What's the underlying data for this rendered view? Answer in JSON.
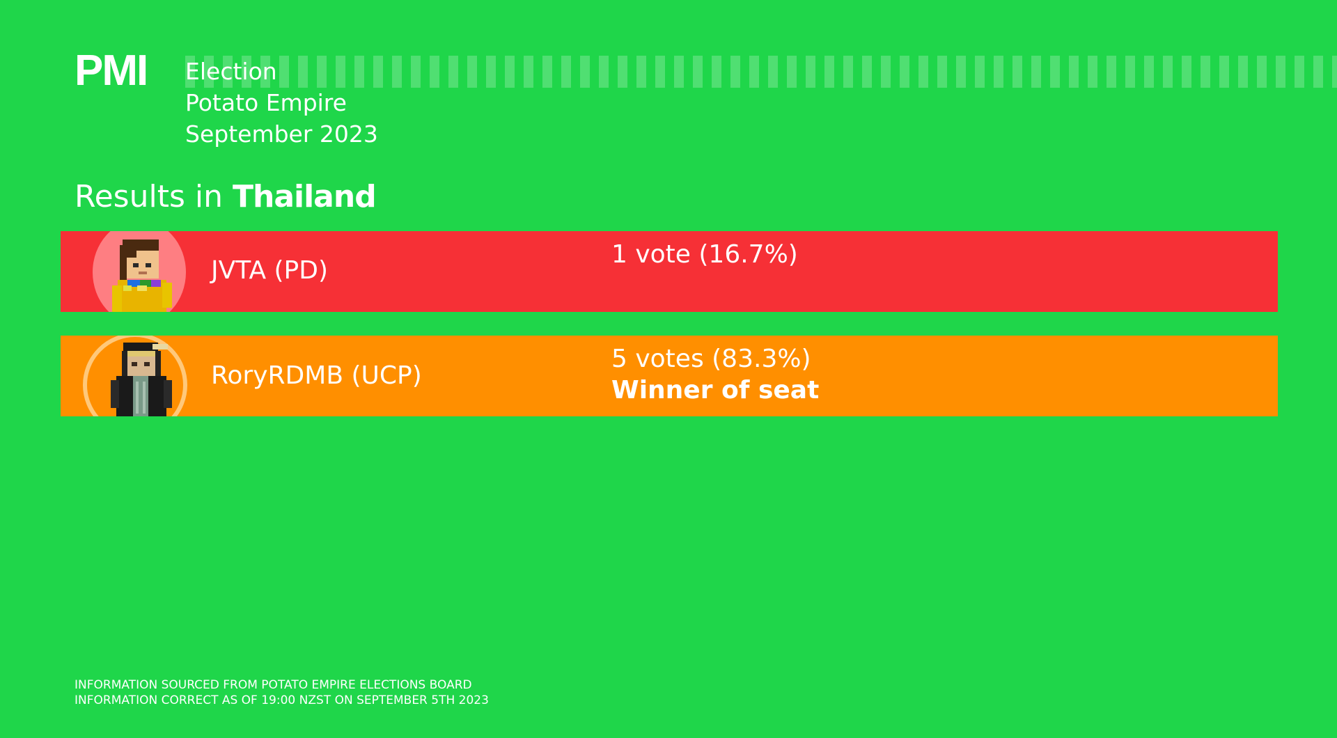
{
  "header": {
    "logo": "PMI",
    "line1": "Election",
    "line2": "Potato Empire",
    "line3": "September 2023"
  },
  "results": {
    "prefix": "Results in",
    "region": "Thailand"
  },
  "candidates": [
    {
      "name": "JVTA (PD)",
      "votes": "1 vote (16.7%)",
      "winner_label": "",
      "color": "#f63036",
      "vote_share": 16.7
    },
    {
      "name": "RoryRDMB (UCP)",
      "votes": "5 votes (83.3%)",
      "winner_label": "Winner of seat",
      "color": "#ff8f00",
      "vote_share": 83.3
    }
  ],
  "footer": {
    "line1": "INFORMATION SOURCED FROM POTATO EMPIRE ELECTIONS BOARD",
    "line2": "INFORMATION CORRECT AS OF 19:00 NZST ON SEPTEMBER 5TH 2023"
  },
  "colors": {
    "background": "#1fd64a",
    "text": "#ffffff"
  }
}
